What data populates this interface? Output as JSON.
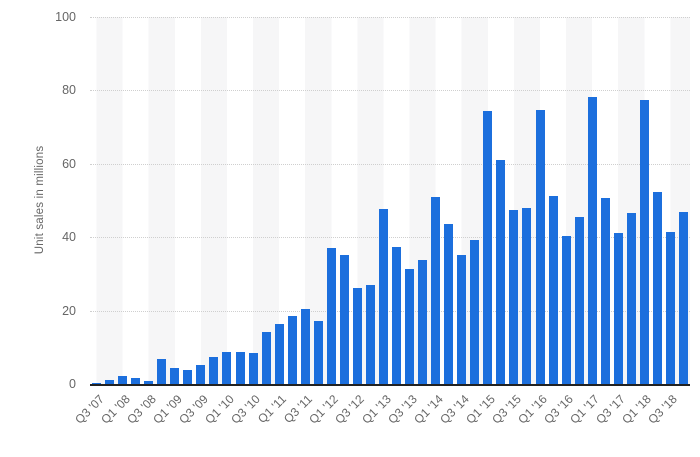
{
  "page": {
    "background": "#ffffff"
  },
  "chart_data": {
    "type": "bar",
    "title": "",
    "xlabel": "",
    "ylabel": "Unit sales in millions",
    "ylim": [
      0,
      100
    ],
    "yticks": [
      0,
      20,
      40,
      60,
      80,
      100
    ],
    "grid": "horizontal dotted gridlines, alternating light vertical background bands",
    "legend": null,
    "x_tick_every": 2,
    "bar_color": "#1c6fdd",
    "axis_line_color": "#222222",
    "tick_label_color": "#666666",
    "gridline_color": "#cfcfcf",
    "band_color": "#f6f6f7",
    "categories": [
      "Q3 '07",
      "Q4 '07",
      "Q1 '08",
      "Q2 '08",
      "Q3 '08",
      "Q4 '08",
      "Q1 '09",
      "Q2 '09",
      "Q3 '09",
      "Q4 '09",
      "Q1 '10",
      "Q2 '10",
      "Q3 '10",
      "Q4 '10",
      "Q1 '11",
      "Q2 '11",
      "Q3 '11",
      "Q4 '11",
      "Q1 '12",
      "Q2 '12",
      "Q3 '12",
      "Q4 '12",
      "Q1 '13",
      "Q2 '13",
      "Q3 '13",
      "Q4 '13",
      "Q1 '14",
      "Q2 '14",
      "Q3 '14",
      "Q4 '14",
      "Q1 '15",
      "Q2 '15",
      "Q3 '15",
      "Q4 '15",
      "Q1 '16",
      "Q2 '16",
      "Q3 '16",
      "Q4 '16",
      "Q1 '17",
      "Q2 '17",
      "Q3 '17",
      "Q4 '17",
      "Q1 '18",
      "Q2 '18",
      "Q3 '18",
      "Q4 '18"
    ],
    "values": [
      0.27,
      1.12,
      2.32,
      1.7,
      0.72,
      6.89,
      4.36,
      3.79,
      5.21,
      7.37,
      8.74,
      8.75,
      8.4,
      14.1,
      16.24,
      18.65,
      20.34,
      17.07,
      37.04,
      35.06,
      26.03,
      26.91,
      47.79,
      37.43,
      31.24,
      33.8,
      51.03,
      43.72,
      35.2,
      39.27,
      74.47,
      61.17,
      47.53,
      48.05,
      74.78,
      51.19,
      40.4,
      45.51,
      78.29,
      50.76,
      41.03,
      46.68,
      77.32,
      52.22,
      41.3,
      46.89
    ]
  }
}
